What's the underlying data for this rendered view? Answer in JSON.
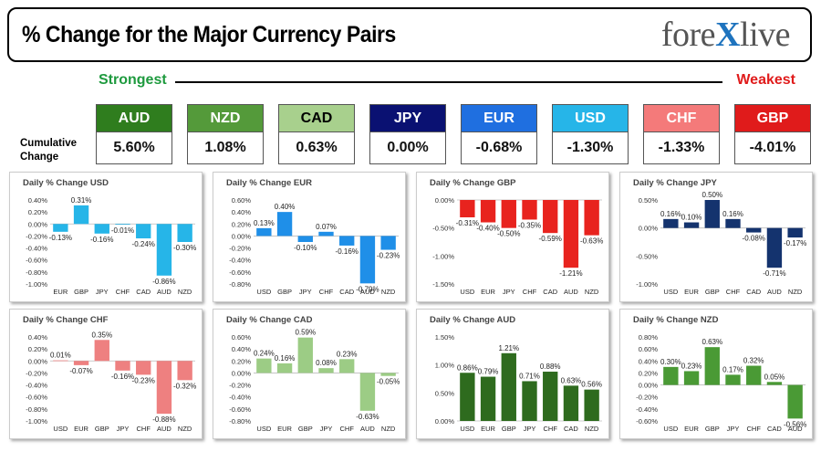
{
  "header": {
    "title": "% Change for the Major Currency Pairs",
    "logo_left": "fore",
    "logo_x": "X",
    "logo_right": "live"
  },
  "ranking": {
    "strongest_label": "Strongest",
    "weakest_label": "Weakest",
    "cumulative_label_line1": "Cumulative",
    "cumulative_label_line2": "Change",
    "currencies": [
      {
        "code": "AUD",
        "value": "5.60%",
        "color": "#2f7d1e",
        "text_color": "#ffffff"
      },
      {
        "code": "NZD",
        "value": "1.08%",
        "color": "#549a3a",
        "text_color": "#ffffff"
      },
      {
        "code": "CAD",
        "value": "0.63%",
        "color": "#a8d08d",
        "text_color": "#000000"
      },
      {
        "code": "JPY",
        "value": "0.00%",
        "color": "#0a1172",
        "text_color": "#ffffff"
      },
      {
        "code": "EUR",
        "value": "-0.68%",
        "color": "#1f6fe0",
        "text_color": "#ffffff"
      },
      {
        "code": "USD",
        "value": "-1.30%",
        "color": "#26b5e8",
        "text_color": "#ffffff"
      },
      {
        "code": "CHF",
        "value": "-1.33%",
        "color": "#f47a7a",
        "text_color": "#ffffff"
      },
      {
        "code": "GBP",
        "value": "-4.01%",
        "color": "#e01b1b",
        "text_color": "#ffffff"
      }
    ]
  },
  "chart_data": [
    {
      "type": "bar",
      "title": "Daily % Change USD",
      "color": "#26b5e8",
      "categories": [
        "EUR",
        "GBP",
        "JPY",
        "CHF",
        "CAD",
        "AUD",
        "NZD"
      ],
      "values": [
        -0.13,
        0.31,
        -0.16,
        -0.01,
        -0.24,
        -0.86,
        -0.3
      ],
      "labels": [
        "-0.13%",
        "0.31%",
        "-0.16%",
        "-0.01%",
        "-0.24%",
        "-0.86%",
        "-0.30%"
      ],
      "yticks": [
        0.4,
        0.2,
        0.0,
        -0.2,
        -0.4,
        -0.6,
        -0.8,
        -1.0
      ],
      "ytick_labels": [
        "0.40%",
        "0.20%",
        "0.00%",
        "-0.20%",
        "-0.40%",
        "-0.60%",
        "-0.80%",
        "-1.00%"
      ],
      "ylim": [
        -1.0,
        0.4
      ],
      "xaxis": "zero"
    },
    {
      "type": "bar",
      "title": "Daily % Change EUR",
      "color": "#1f8fe8",
      "categories": [
        "USD",
        "GBP",
        "JPY",
        "CHF",
        "CAD",
        "AUD",
        "NZD"
      ],
      "values": [
        0.13,
        0.4,
        -0.1,
        0.07,
        -0.16,
        -0.79,
        -0.23
      ],
      "labels": [
        "0.13%",
        "0.40%",
        "-0.10%",
        "0.07%",
        "-0.16%",
        "-0.79%",
        "-0.23%"
      ],
      "yticks": [
        0.6,
        0.4,
        0.2,
        0.0,
        -0.2,
        -0.4,
        -0.6,
        -0.8
      ],
      "ytick_labels": [
        "0.60%",
        "0.40%",
        "0.20%",
        "0.00%",
        "-0.20%",
        "-0.40%",
        "-0.60%",
        "-0.80%"
      ],
      "ylim": [
        -0.8,
        0.6
      ],
      "xaxis": "zero"
    },
    {
      "type": "bar",
      "title": "Daily % Change GBP",
      "color": "#e8231e",
      "categories": [
        "USD",
        "EUR",
        "JPY",
        "CHF",
        "CAD",
        "AUD",
        "NZD"
      ],
      "values": [
        -0.31,
        -0.4,
        -0.5,
        -0.35,
        -0.59,
        -1.21,
        -0.63
      ],
      "labels": [
        "-0.31%",
        "-0.40%",
        "-0.50%",
        "-0.35%",
        "-0.59%",
        "-1.21%",
        "-0.63%"
      ],
      "yticks": [
        0.0,
        -0.5,
        -1.0,
        -1.5
      ],
      "ytick_labels": [
        "0.00%",
        "-0.50%",
        "-1.00%",
        "-1.50%"
      ],
      "ylim": [
        -1.5,
        0.0
      ],
      "xaxis": "bottom"
    },
    {
      "type": "bar",
      "title": "Daily % Change JPY",
      "color": "#14336e",
      "categories": [
        "USD",
        "EUR",
        "GBP",
        "CHF",
        "CAD",
        "AUD",
        "NZD"
      ],
      "values": [
        0.16,
        0.1,
        0.5,
        0.16,
        -0.08,
        -0.71,
        -0.17
      ],
      "labels": [
        "0.16%",
        "0.10%",
        "0.50%",
        "0.16%",
        "-0.08%",
        "-0.71%",
        "-0.17%"
      ],
      "yticks": [
        0.5,
        0.0,
        -0.5,
        -1.0
      ],
      "ytick_labels": [
        "0.50%",
        "0.00%",
        "-0.50%",
        "-1.00%"
      ],
      "ylim": [
        -1.0,
        0.5
      ],
      "xaxis": "bottom"
    },
    {
      "type": "bar",
      "title": "Daily % Change CHF",
      "color": "#ee8080",
      "categories": [
        "USD",
        "EUR",
        "GBP",
        "JPY",
        "CHF",
        "AUD",
        "NZD"
      ],
      "values": [
        0.01,
        -0.07,
        0.35,
        -0.16,
        -0.23,
        -0.88,
        -0.32
      ],
      "labels": [
        "0.01%",
        "-0.07%",
        "0.35%",
        "-0.16%",
        "-0.23%",
        "-0.88%",
        "-0.32%"
      ],
      "yticks": [
        0.4,
        0.2,
        0.0,
        -0.2,
        -0.4,
        -0.6,
        -0.8,
        -1.0
      ],
      "ytick_labels": [
        "0.40%",
        "0.20%",
        "0.00%",
        "-0.20%",
        "-0.40%",
        "-0.60%",
        "-0.80%",
        "-1.00%"
      ],
      "ylim": [
        -1.0,
        0.4
      ],
      "xaxis": "bottom"
    },
    {
      "type": "bar",
      "title": "Daily % Change CAD",
      "color": "#9ccc85",
      "categories": [
        "USD",
        "EUR",
        "GBP",
        "JPY",
        "CHF",
        "AUD",
        "NZD"
      ],
      "values": [
        0.24,
        0.16,
        0.59,
        0.08,
        0.23,
        -0.63,
        -0.05
      ],
      "labels": [
        "0.24%",
        "0.16%",
        "0.59%",
        "0.08%",
        "0.23%",
        "-0.63%",
        "-0.05%"
      ],
      "yticks": [
        0.6,
        0.4,
        0.2,
        0.0,
        -0.2,
        -0.4,
        -0.6,
        -0.8
      ],
      "ytick_labels": [
        "0.60%",
        "0.40%",
        "0.20%",
        "0.00%",
        "-0.20%",
        "-0.40%",
        "-0.60%",
        "-0.80%"
      ],
      "ylim": [
        -0.8,
        0.6
      ],
      "xaxis": "bottom"
    },
    {
      "type": "bar",
      "title": "Daily % Change AUD",
      "color": "#2e6b1e",
      "categories": [
        "USD",
        "EUR",
        "GBP",
        "JPY",
        "CHF",
        "CAD",
        "NZD"
      ],
      "values": [
        0.86,
        0.79,
        1.21,
        0.71,
        0.88,
        0.63,
        0.56
      ],
      "labels": [
        "0.86%",
        "0.79%",
        "1.21%",
        "0.71%",
        "0.88%",
        "0.63%",
        "0.56%"
      ],
      "yticks": [
        1.5,
        1.0,
        0.5,
        0.0
      ],
      "ytick_labels": [
        "1.50%",
        "1.00%",
        "0.50%",
        "0.00%"
      ],
      "ylim": [
        0.0,
        1.5
      ],
      "xaxis": "bottom"
    },
    {
      "type": "bar",
      "title": "Daily % Change NZD",
      "color": "#4a9a35",
      "categories": [
        "USD",
        "EUR",
        "GBP",
        "JPY",
        "CHF",
        "CAD",
        "AUD"
      ],
      "values": [
        0.3,
        0.23,
        0.63,
        0.17,
        0.32,
        0.05,
        -0.56
      ],
      "labels": [
        "0.30%",
        "0.23%",
        "0.63%",
        "0.17%",
        "0.32%",
        "0.05%",
        "-0.56%"
      ],
      "yticks": [
        0.8,
        0.6,
        0.4,
        0.2,
        0.0,
        -0.2,
        -0.4,
        -0.6
      ],
      "ytick_labels": [
        "0.80%",
        "0.60%",
        "0.40%",
        "0.20%",
        "0.00%",
        "-0.20%",
        "-0.40%",
        "-0.60%"
      ],
      "ylim": [
        -0.6,
        0.8
      ],
      "xaxis": "bottom"
    }
  ]
}
